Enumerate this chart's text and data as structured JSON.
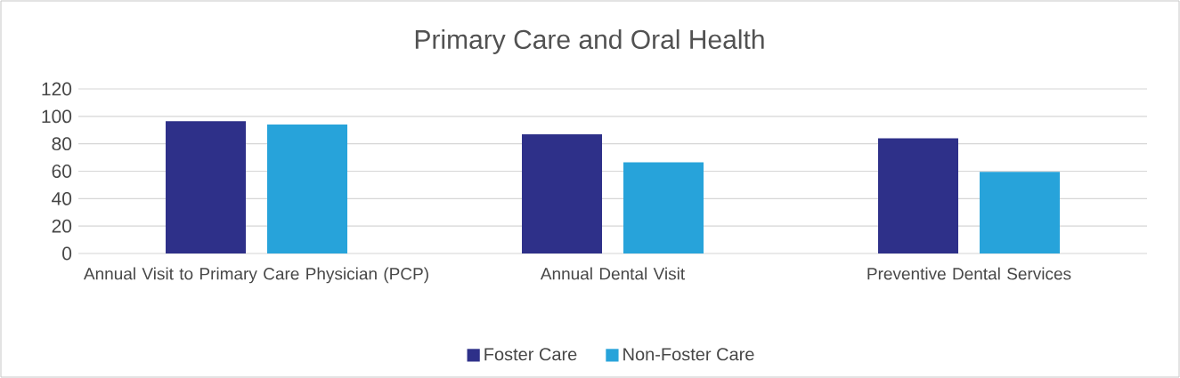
{
  "chart_data": {
    "type": "bar",
    "title": "Primary Care and Oral Health",
    "categories": [
      "Annual Visit to Primary Care Physician (PCP)",
      "Annual Dental Visit",
      "Preventive Dental Services"
    ],
    "series": [
      {
        "name": "Foster Care",
        "color": "#2e3089",
        "values": [
          96.5,
          87,
          84
        ]
      },
      {
        "name": "Non-Foster Care",
        "color": "#27a3da",
        "values": [
          94,
          66.5,
          59.5
        ]
      }
    ],
    "ylim": [
      0,
      120
    ],
    "yticks": [
      0,
      20,
      40,
      60,
      80,
      100,
      120
    ],
    "grid": "y",
    "legend": "bottom"
  }
}
